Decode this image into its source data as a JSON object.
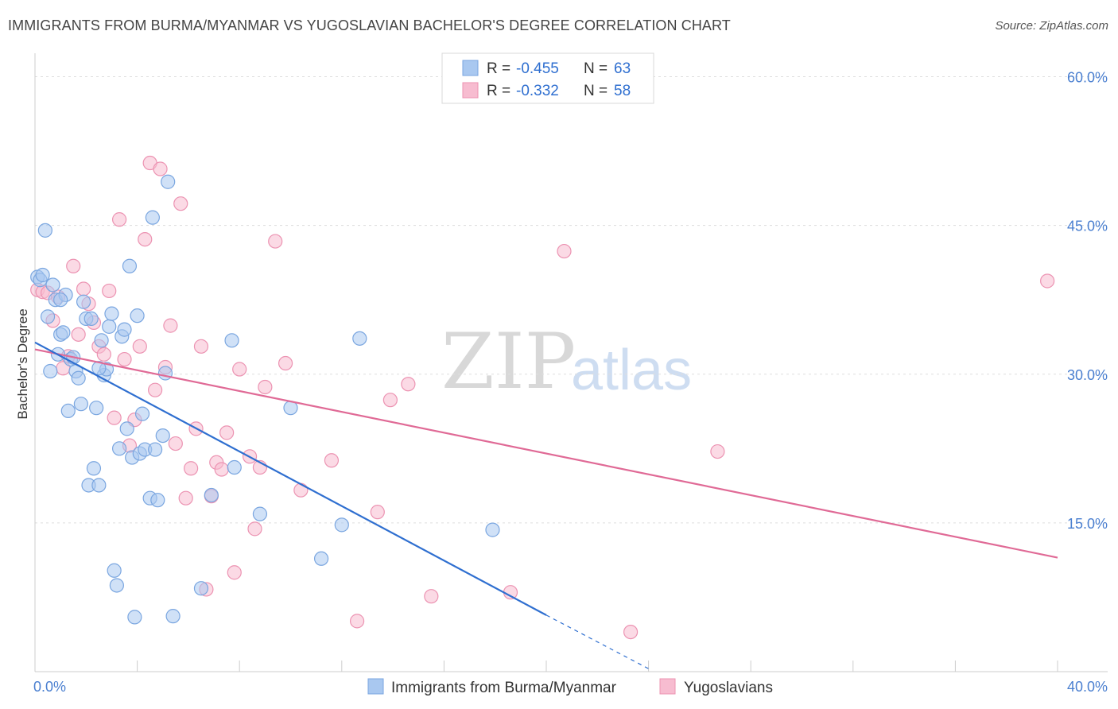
{
  "header": {
    "title": "IMMIGRANTS FROM BURMA/MYANMAR VS YUGOSLAVIAN BACHELOR'S DEGREE CORRELATION CHART",
    "source": "Source: ZipAtlas.com"
  },
  "legend_box": {
    "rows": [
      {
        "r_label": "R =",
        "r_value": "-0.455",
        "n_label": "N =",
        "n_value": "63"
      },
      {
        "r_label": "R =",
        "r_value": "-0.332",
        "n_label": "N =",
        "n_value": "58"
      }
    ]
  },
  "watermark": {
    "part1": "ZIP",
    "part2": "atlas"
  },
  "colors": {
    "blue_fill": "#a9c8f0",
    "blue_stroke": "#7aa6e0",
    "blue_line": "#2f6fd0",
    "pink_fill": "#f7bcd0",
    "pink_stroke": "#ec93b2",
    "pink_line": "#e06a96",
    "grid": "#dddddd",
    "tick_label": "#4a7fd0"
  },
  "chart_data": {
    "type": "scatter",
    "title": "IMMIGRANTS FROM BURMA/MYANMAR VS YUGOSLAVIAN BACHELOR'S DEGREE CORRELATION CHART",
    "xlabel": "",
    "ylabel": "Bachelor's Degree",
    "xlim": [
      0,
      40
    ],
    "ylim": [
      0,
      60
    ],
    "x_tick_labels": [
      "0.0%",
      "40.0%"
    ],
    "y_ticks": [
      15,
      30,
      45,
      60
    ],
    "y_tick_labels": [
      "15.0%",
      "30.0%",
      "45.0%",
      "60.0%"
    ],
    "grid": true,
    "legend_position": "bottom-center",
    "series": [
      {
        "name": "Immigrants from Burma/Myanmar",
        "R": -0.455,
        "N": 63,
        "trend": {
          "x_start": 0.0,
          "y_start": 33.2,
          "x_end": 20.0,
          "y_end": 5.7,
          "dashed_x_end": 24.0,
          "dashed_y_end": 0.3
        },
        "points": [
          [
            0.1,
            39.8
          ],
          [
            0.2,
            39.5
          ],
          [
            0.3,
            40.0
          ],
          [
            0.4,
            44.5
          ],
          [
            0.5,
            35.8
          ],
          [
            0.6,
            30.3
          ],
          [
            0.7,
            39.0
          ],
          [
            0.8,
            37.5
          ],
          [
            0.9,
            32.0
          ],
          [
            1.0,
            34.0
          ],
          [
            1.1,
            34.2
          ],
          [
            1.2,
            38.0
          ],
          [
            1.3,
            26.3
          ],
          [
            1.4,
            31.5
          ],
          [
            1.5,
            31.7
          ],
          [
            1.6,
            30.3
          ],
          [
            1.7,
            29.6
          ],
          [
            1.8,
            27.0
          ],
          [
            1.9,
            37.3
          ],
          [
            2.0,
            35.6
          ],
          [
            2.1,
            18.8
          ],
          [
            2.2,
            35.6
          ],
          [
            2.3,
            20.5
          ],
          [
            2.4,
            26.6
          ],
          [
            2.5,
            18.8
          ],
          [
            2.6,
            33.4
          ],
          [
            2.7,
            29.9
          ],
          [
            2.8,
            30.5
          ],
          [
            2.9,
            34.8
          ],
          [
            3.0,
            36.1
          ],
          [
            3.1,
            10.2
          ],
          [
            3.2,
            8.7
          ],
          [
            3.3,
            22.5
          ],
          [
            3.4,
            33.8
          ],
          [
            3.5,
            34.5
          ],
          [
            3.6,
            24.5
          ],
          [
            3.7,
            40.9
          ],
          [
            3.8,
            21.6
          ],
          [
            3.9,
            5.5
          ],
          [
            4.0,
            35.9
          ],
          [
            4.1,
            22.0
          ],
          [
            4.2,
            26.0
          ],
          [
            4.3,
            22.4
          ],
          [
            4.5,
            17.5
          ],
          [
            4.6,
            45.8
          ],
          [
            4.7,
            22.4
          ],
          [
            4.8,
            17.3
          ],
          [
            5.0,
            23.8
          ],
          [
            5.2,
            49.4
          ],
          [
            5.1,
            30.1
          ],
          [
            5.4,
            5.6
          ],
          [
            6.5,
            8.4
          ],
          [
            6.9,
            17.8
          ],
          [
            7.7,
            33.4
          ],
          [
            7.8,
            20.6
          ],
          [
            8.8,
            15.9
          ],
          [
            10.0,
            26.6
          ],
          [
            11.2,
            11.4
          ],
          [
            12.0,
            14.8
          ],
          [
            12.7,
            33.6
          ],
          [
            17.9,
            14.3
          ],
          [
            2.5,
            30.6
          ],
          [
            1.0,
            37.5
          ]
        ]
      },
      {
        "name": "Yugoslavians",
        "R": -0.332,
        "N": 58,
        "trend": {
          "x_start": 0.0,
          "y_start": 32.5,
          "x_end": 40.0,
          "y_end": 11.5
        },
        "points": [
          [
            0.1,
            38.5
          ],
          [
            0.3,
            38.3
          ],
          [
            0.5,
            38.2
          ],
          [
            0.7,
            35.4
          ],
          [
            0.9,
            37.8
          ],
          [
            1.1,
            30.6
          ],
          [
            1.3,
            31.8
          ],
          [
            1.5,
            40.9
          ],
          [
            1.7,
            34.0
          ],
          [
            1.9,
            38.6
          ],
          [
            2.1,
            37.1
          ],
          [
            2.3,
            35.2
          ],
          [
            2.5,
            32.8
          ],
          [
            2.7,
            32.0
          ],
          [
            2.9,
            38.4
          ],
          [
            3.1,
            25.6
          ],
          [
            3.3,
            45.6
          ],
          [
            3.5,
            31.5
          ],
          [
            3.7,
            22.8
          ],
          [
            3.9,
            25.4
          ],
          [
            4.1,
            32.8
          ],
          [
            4.3,
            43.6
          ],
          [
            4.5,
            51.3
          ],
          [
            4.7,
            28.4
          ],
          [
            4.9,
            50.7
          ],
          [
            5.1,
            30.7
          ],
          [
            5.3,
            34.9
          ],
          [
            5.5,
            23.0
          ],
          [
            5.7,
            47.2
          ],
          [
            5.9,
            17.5
          ],
          [
            6.1,
            20.5
          ],
          [
            6.3,
            24.5
          ],
          [
            6.5,
            32.8
          ],
          [
            6.7,
            8.3
          ],
          [
            6.9,
            17.7
          ],
          [
            7.1,
            21.1
          ],
          [
            7.3,
            20.4
          ],
          [
            7.5,
            24.1
          ],
          [
            7.8,
            10.0
          ],
          [
            8.0,
            30.5
          ],
          [
            8.4,
            21.7
          ],
          [
            8.6,
            14.4
          ],
          [
            8.8,
            20.6
          ],
          [
            9.0,
            28.7
          ],
          [
            9.4,
            43.4
          ],
          [
            9.8,
            31.1
          ],
          [
            10.4,
            18.3
          ],
          [
            11.6,
            21.3
          ],
          [
            12.6,
            5.1
          ],
          [
            13.4,
            16.1
          ],
          [
            13.9,
            27.4
          ],
          [
            14.6,
            29.0
          ],
          [
            15.5,
            7.6
          ],
          [
            18.6,
            8.0
          ],
          [
            20.7,
            42.4
          ],
          [
            23.3,
            4.0
          ],
          [
            26.7,
            22.2
          ],
          [
            39.6,
            39.4
          ]
        ]
      }
    ]
  }
}
